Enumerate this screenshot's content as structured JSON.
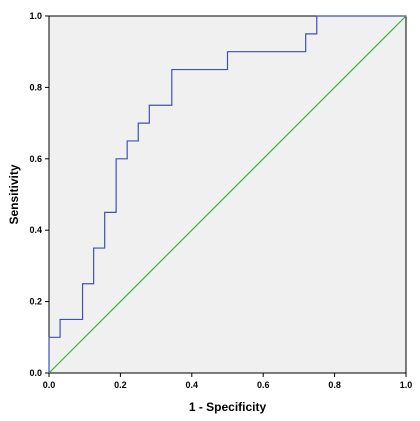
{
  "chart_data": {
    "type": "line",
    "title": "",
    "xlabel": "1 - Specificity",
    "ylabel": "Sensitivity",
    "xlim": [
      0.0,
      1.0
    ],
    "ylim": [
      0.0,
      1.0
    ],
    "x_ticks": [
      "0.0",
      "0.2",
      "0.4",
      "0.6",
      "0.8",
      "1.0"
    ],
    "y_ticks": [
      "0.0",
      "0.2",
      "0.4",
      "0.6",
      "0.8",
      "1.0"
    ],
    "grid": false,
    "background_color": "#f0f0f0",
    "series": [
      {
        "style": "step",
        "color": "#3f51b5",
        "x": [
          0.0,
          0.0,
          0.031,
          0.031,
          0.094,
          0.094,
          0.125,
          0.125,
          0.156,
          0.156,
          0.188,
          0.188,
          0.219,
          0.219,
          0.25,
          0.25,
          0.281,
          0.281,
          0.344,
          0.344,
          0.5,
          0.5,
          0.719,
          0.719,
          0.75,
          0.75,
          1.0
        ],
        "y": [
          0.0,
          0.1,
          0.1,
          0.15,
          0.15,
          0.25,
          0.25,
          0.35,
          0.35,
          0.45,
          0.45,
          0.6,
          0.6,
          0.65,
          0.65,
          0.7,
          0.7,
          0.75,
          0.75,
          0.85,
          0.85,
          0.9,
          0.9,
          0.95,
          0.95,
          1.0,
          1.0
        ]
      },
      {
        "style": "reference",
        "color": "#3cb043",
        "x": [
          0.0,
          1.0
        ],
        "y": [
          0.0,
          1.0
        ]
      }
    ]
  }
}
